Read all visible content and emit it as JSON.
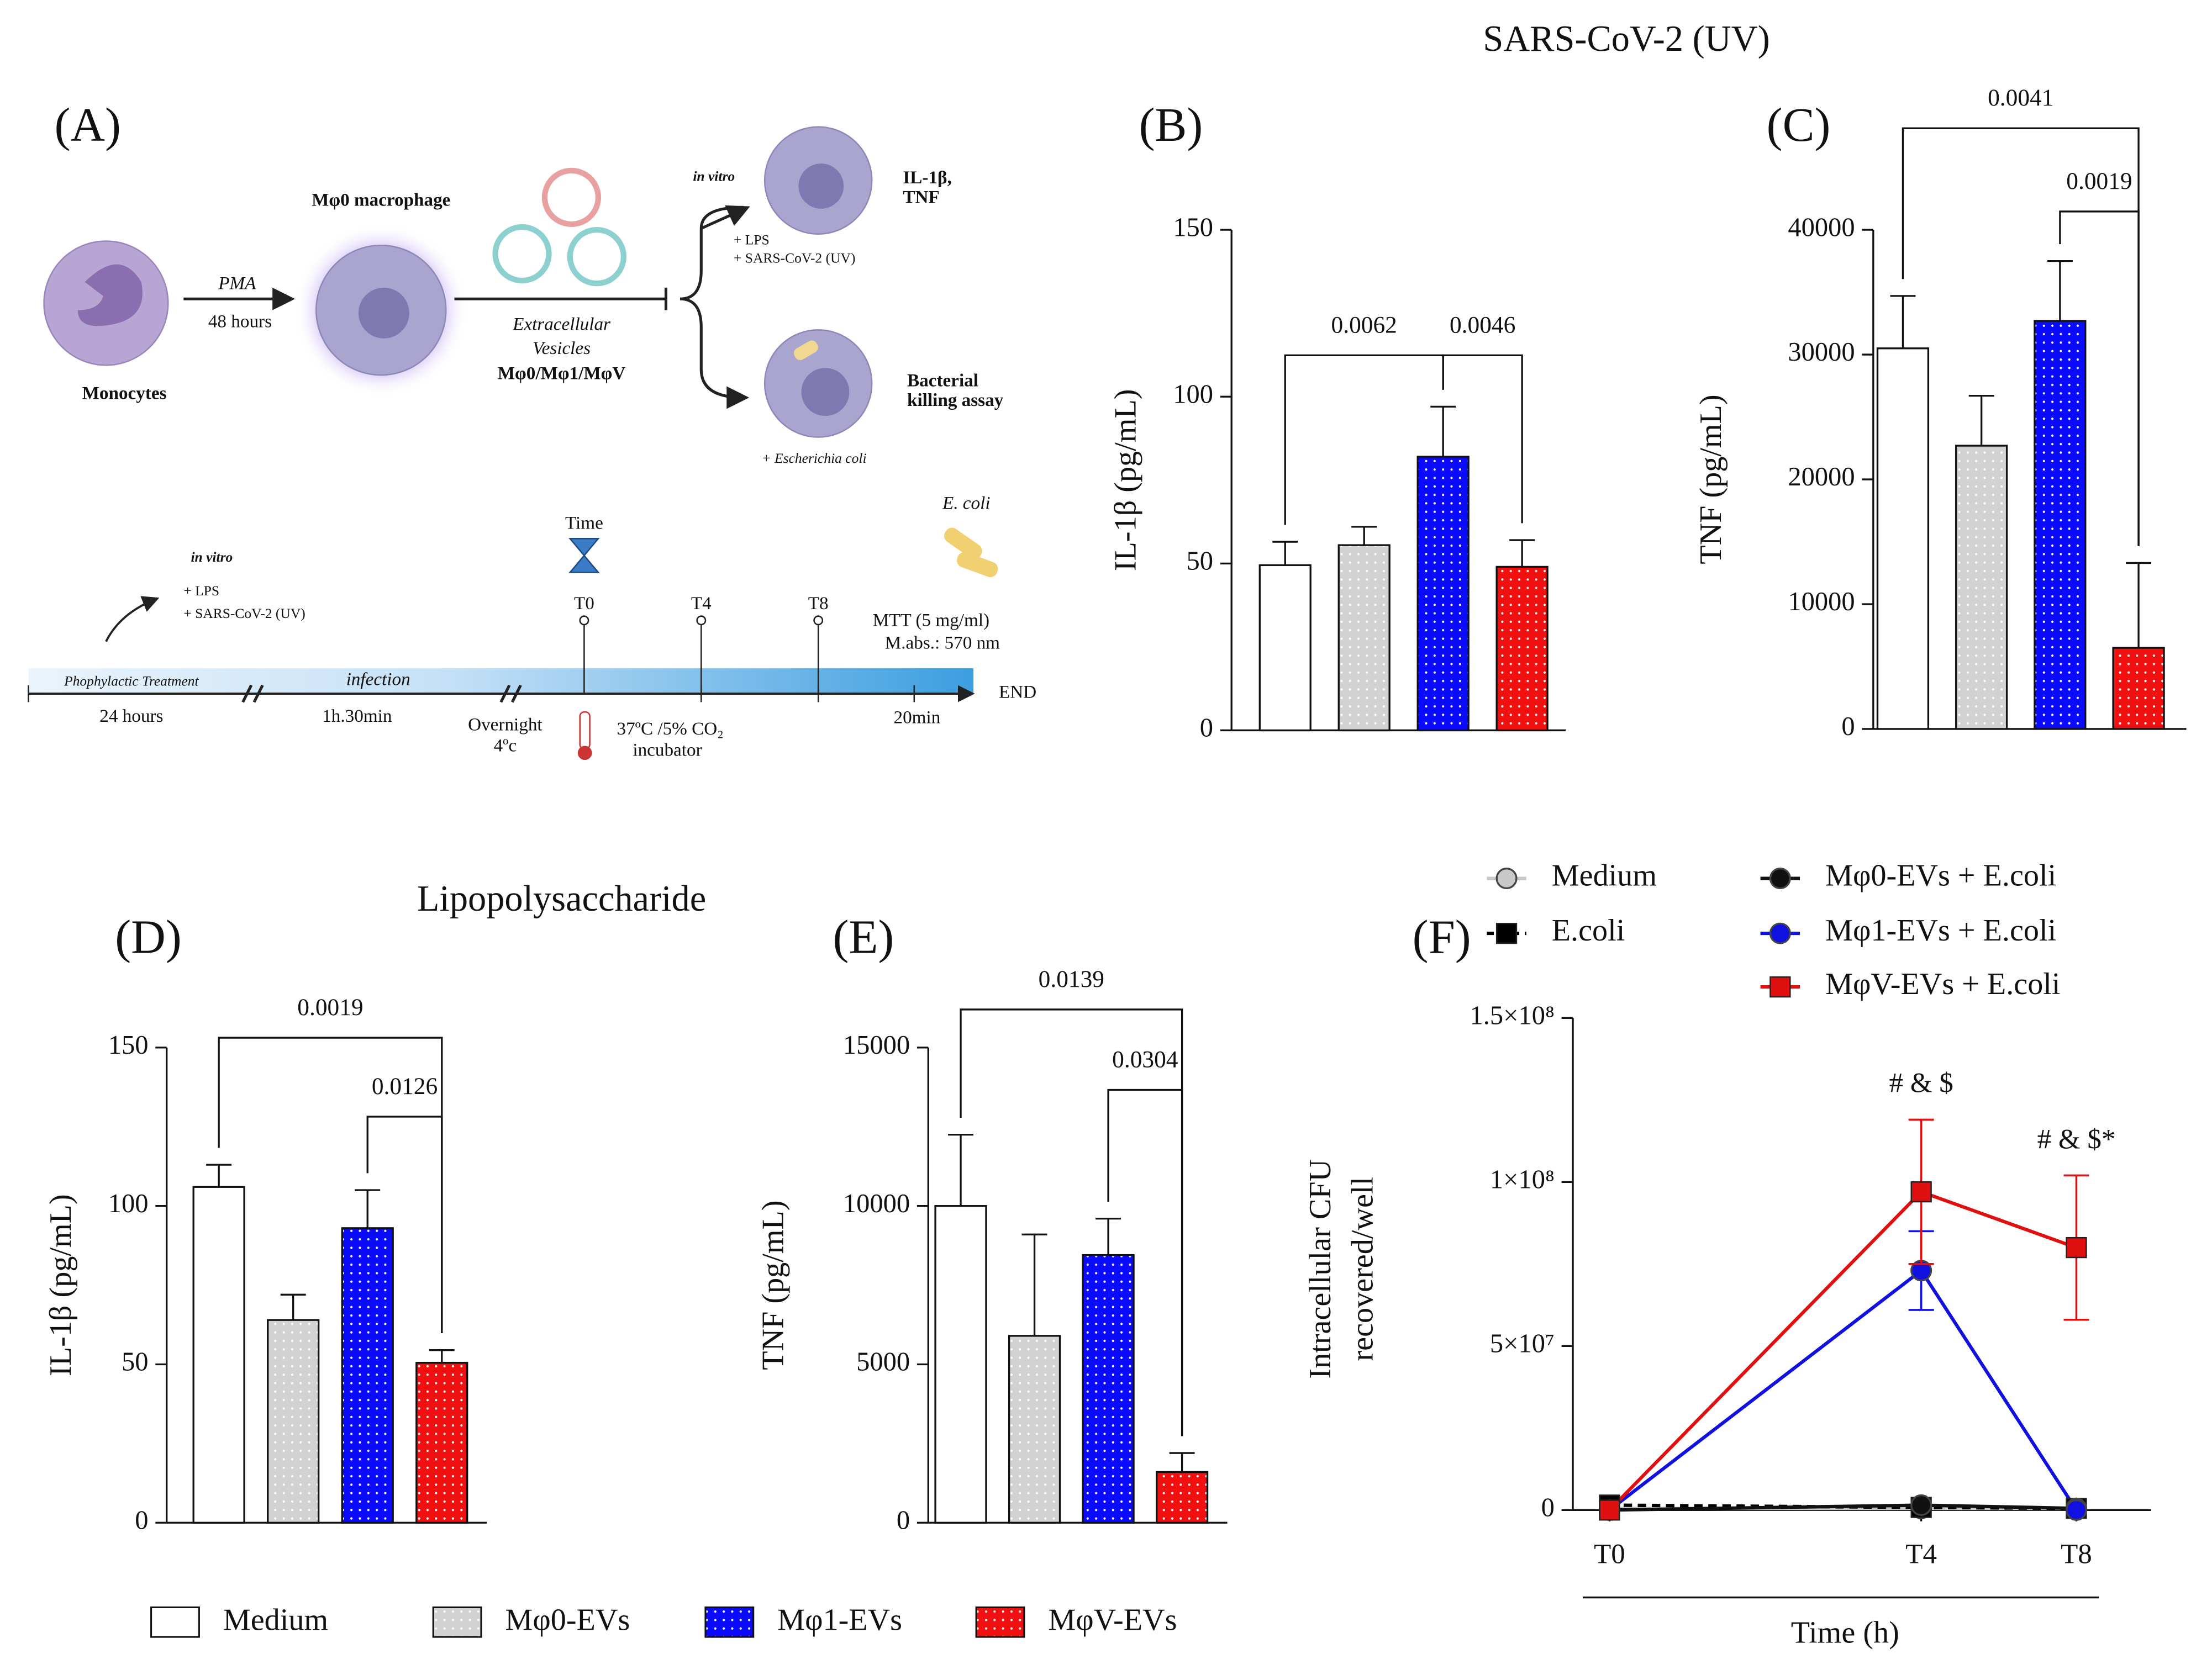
{
  "titles": {
    "sars": "SARS-CoV-2 (UV)",
    "lps": "Lipopolysaccharide"
  },
  "panel_a": {
    "label": "(A)",
    "texts": [
      "Mφ0 macrophage",
      "Monocytes",
      "PMA",
      "48 hours",
      "Extracellular",
      "Vesicles",
      "Mφ0/Mφ1/MφV",
      "in vitro",
      "+ LPS",
      "+ SARS-CoV-2 (UV)",
      "IL-1β,",
      "TNF",
      "Bacterial",
      "killing assay",
      "+ Escherichia coli",
      "in vitro",
      "+ LPS",
      "+ SARS-CoV-2 (UV)",
      "Time",
      "T0",
      "T4",
      "T8",
      "E. coli",
      "MTT (5 mg/ml)",
      "M.abs.: 570 nm",
      "Phophylactic Treatment",
      "infection",
      "24 hours",
      "1h.30min",
      "Overnight",
      "4ºc",
      "37ºC /5% CO₂",
      "incubator",
      "20min",
      "END"
    ]
  },
  "bar_legend": [
    {
      "name": "Medium",
      "color": "#ffffff"
    },
    {
      "name": "Mφ0-EVs",
      "color": "#d2d2d2"
    },
    {
      "name": "Mφ1-EVs",
      "color": "#0a0aff"
    },
    {
      "name": "MφV-EVs",
      "color": "#f01010"
    }
  ],
  "chart_data": [
    {
      "type": "bar",
      "panel": "(B)",
      "ylabel": "IL-1β (pg/mL)",
      "values": [
        49.5,
        55.5,
        82,
        49
      ],
      "errors": [
        7,
        5.5,
        15,
        8
      ],
      "ylim": [
        0,
        150
      ],
      "yticks": [
        0,
        50,
        100,
        150
      ],
      "brackets": [
        {
          "from": 0,
          "to": 2,
          "label": "0.0062"
        },
        {
          "from": 2,
          "to": 3,
          "label": "0.0046"
        }
      ]
    },
    {
      "type": "bar",
      "panel": "(C)",
      "ylabel": "TNF (pg/mL)",
      "values": [
        30500,
        22700,
        32700,
        6500
      ],
      "errors": [
        4200,
        4000,
        4800,
        6800
      ],
      "ylim": [
        0,
        40000
      ],
      "yticks": [
        0,
        10000,
        20000,
        30000,
        40000
      ],
      "brackets": [
        {
          "from": 0,
          "to": 3,
          "label": "0.0041"
        },
        {
          "from": 2,
          "to": 3,
          "label": "0.0019"
        }
      ]
    },
    {
      "type": "bar",
      "panel": "(D)",
      "ylabel": "IL-1β (pg/mL)",
      "values": [
        106,
        64,
        93,
        50.5
      ],
      "errors": [
        7,
        8,
        12,
        4
      ],
      "ylim": [
        0,
        150
      ],
      "yticks": [
        0,
        50,
        100,
        150
      ],
      "brackets": [
        {
          "from": 0,
          "to": 3,
          "label": "0.0019"
        },
        {
          "from": 2,
          "to": 3,
          "label": "0.0126"
        }
      ]
    },
    {
      "type": "bar",
      "panel": "(E)",
      "ylabel": "TNF (pg/mL)",
      "values": [
        10000,
        5900,
        8450,
        1600
      ],
      "errors": [
        2250,
        3200,
        1150,
        600
      ],
      "ylim": [
        0,
        15000
      ],
      "yticks": [
        0,
        5000,
        10000,
        15000
      ],
      "brackets": [
        {
          "from": 0,
          "to": 3,
          "label": "0.0139"
        },
        {
          "from": 2,
          "to": 3,
          "label": "0.0304"
        }
      ]
    },
    {
      "type": "line",
      "panel": "(F)",
      "ylabel": [
        "Intracellular CFU",
        "recovered/well"
      ],
      "xlabel": "Time (h)",
      "categories": [
        "T0",
        "T4",
        "T8"
      ],
      "ylim": [
        0,
        150000000
      ],
      "yticks": [
        0,
        {
          "value": 50000000,
          "label": "5×10⁷"
        },
        {
          "value": 100000000,
          "label": "1×10⁸"
        },
        {
          "value": 150000000,
          "label": "1.5×10⁸"
        }
      ],
      "series": [
        {
          "name": "Medium",
          "color": "#c8c8c8",
          "marker": "circle",
          "values": [
            500000,
            500000,
            500000
          ]
        },
        {
          "name": "E.coli",
          "color": "#000000",
          "marker": "square",
          "dashed": true,
          "values": [
            1500000,
            800000,
            500000
          ]
        },
        {
          "name": "Mφ0-EVs + E.coli",
          "color": "#111111",
          "marker": "circle",
          "values": [
            0,
            1500000,
            500000
          ]
        },
        {
          "name": "Mφ1-EVs + E.coli",
          "color": "#1010e0",
          "marker": "circle",
          "values": [
            0,
            73000000,
            0
          ],
          "errors": [
            0,
            12000000,
            0
          ]
        },
        {
          "name": "MφV-EVs + E.coli",
          "color": "#e01010",
          "marker": "square",
          "values": [
            0,
            97000000,
            80000000
          ],
          "errors": [
            0,
            22000000,
            22000000
          ]
        }
      ],
      "annotations": [
        {
          "at": 1,
          "label": "# & $"
        },
        {
          "at": 2,
          "label": "# & $*"
        }
      ]
    }
  ]
}
